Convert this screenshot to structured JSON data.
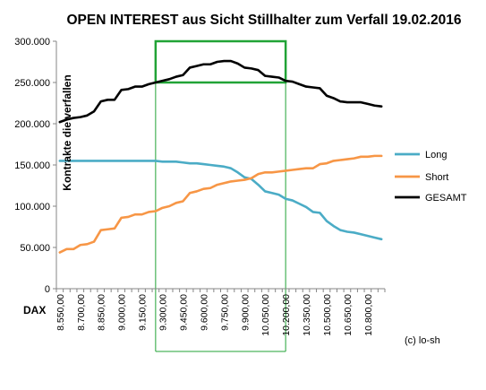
{
  "chart_data": {
    "type": "line",
    "title": "OPEN INTEREST aus Sicht Stillhalter zum Verfall 19.02.2016",
    "ylabel": "Kontrakte die verfallen",
    "xlabel": "DAX",
    "ylim": [
      0,
      300000
    ],
    "yticks": [
      "0",
      "50.000",
      "100.000",
      "150.000",
      "200.000",
      "250.000",
      "300.000"
    ],
    "grid": false,
    "legend_position": "right",
    "credit": "(c) lo-sh",
    "x_labels": [
      "8.550,00",
      "8.700,00",
      "8.850,00",
      "9.000,00",
      "9.150,00",
      "9.300,00",
      "9.450,00",
      "9.600,00",
      "9.750,00",
      "9.900,00",
      "10.050,00",
      "10.200,00",
      "10.350,00",
      "10.500,00",
      "10.650,00",
      "10.800,00"
    ],
    "x": [
      8550,
      8600,
      8650,
      8700,
      8750,
      8800,
      8850,
      8900,
      8950,
      9000,
      9050,
      9100,
      9150,
      9200,
      9250,
      9300,
      9350,
      9400,
      9450,
      9500,
      9550,
      9600,
      9650,
      9700,
      9750,
      9800,
      9850,
      9900,
      9950,
      10000,
      10050,
      10100,
      10150,
      10200,
      10250,
      10300,
      10350,
      10400,
      10450,
      10500,
      10550,
      10600,
      10650,
      10700,
      10750,
      10800,
      10850,
      10900
    ],
    "series": [
      {
        "name": "Long",
        "color": "#4bacc6",
        "values": [
          155000,
          155000,
          155000,
          155000,
          155000,
          155000,
          155000,
          155000,
          155000,
          155000,
          155000,
          155000,
          155000,
          155000,
          155000,
          154000,
          154000,
          154000,
          153000,
          152000,
          152000,
          151000,
          150000,
          149000,
          148000,
          146000,
          141000,
          135000,
          133000,
          126000,
          118000,
          116000,
          114000,
          109000,
          107000,
          103000,
          99000,
          93000,
          92000,
          82000,
          76000,
          71000,
          69000,
          68000,
          66000,
          64000,
          62000,
          60000
        ]
      },
      {
        "name": "Short",
        "color": "#f79646",
        "values": [
          44000,
          48000,
          48000,
          53000,
          54000,
          57000,
          71000,
          72000,
          73000,
          86000,
          87000,
          90000,
          90000,
          93000,
          94000,
          98000,
          100000,
          104000,
          106000,
          116000,
          118000,
          121000,
          122000,
          126000,
          128000,
          130000,
          131000,
          132000,
          134000,
          139000,
          141000,
          141000,
          142000,
          143000,
          144000,
          145000,
          146000,
          146000,
          151000,
          152000,
          155000,
          156000,
          157000,
          158000,
          160000,
          160000,
          161000,
          161000
        ]
      },
      {
        "name": "GESAMT",
        "color": "#000000",
        "values": [
          202000,
          205000,
          207000,
          208000,
          210000,
          215000,
          227000,
          229000,
          229000,
          241000,
          242000,
          245000,
          245000,
          248000,
          250000,
          252000,
          254000,
          257000,
          259000,
          268000,
          270000,
          272000,
          272000,
          275000,
          276000,
          276000,
          273000,
          268000,
          267000,
          265000,
          258000,
          257000,
          256000,
          252000,
          251000,
          248000,
          245000,
          244000,
          243000,
          234000,
          231000,
          227000,
          226000,
          226000,
          226000,
          224000,
          222000,
          221000
        ]
      }
    ],
    "highlight": {
      "color": "#21a336",
      "x_from": 9250,
      "x_to": 10200,
      "y_from": 250000,
      "y_to": 300000
    }
  }
}
